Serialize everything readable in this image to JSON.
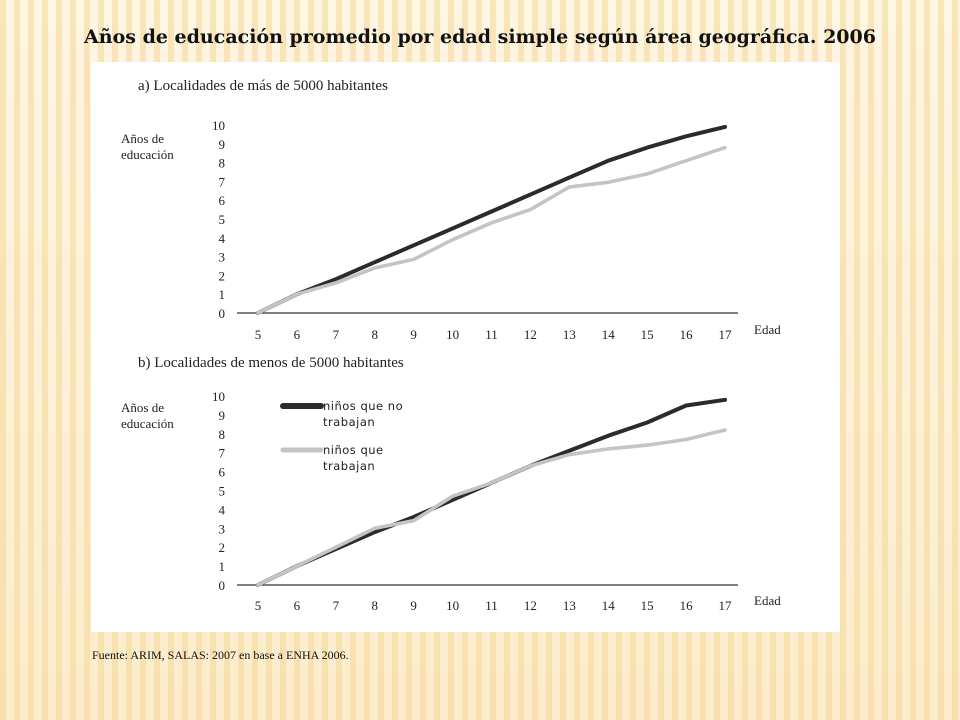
{
  "slide": {
    "title": "Años de educación promedio por edad simple según área geográfica. 2006",
    "source": "Fuente: ARIM, SALAS: 2007 en base a ENHA 2006."
  },
  "chart_data": [
    {
      "type": "line",
      "panel_title": "a) Localidades de más de 5000 habitantes",
      "ylabel": [
        "Años de",
        "educación"
      ],
      "xlabel": "Edad",
      "x": [
        5,
        6,
        7,
        8,
        9,
        10,
        11,
        12,
        13,
        14,
        15,
        16,
        17
      ],
      "xlim": [
        5,
        17
      ],
      "ylim": [
        0,
        10
      ],
      "yticks": [
        0,
        1,
        2,
        3,
        4,
        5,
        6,
        7,
        8,
        9,
        10
      ],
      "grid": false,
      "series": [
        {
          "values": [
            0,
            1.0,
            1.8,
            2.7,
            3.6,
            4.5,
            5.4,
            6.3,
            7.2,
            8.1,
            8.8,
            9.4,
            9.9
          ],
          "color": "#2b2b2b"
        },
        {
          "values": [
            0,
            1.0,
            1.6,
            2.4,
            2.85,
            3.9,
            4.8,
            5.5,
            6.7,
            6.95,
            7.4,
            8.1,
            8.8
          ],
          "color": "#c4c4c4"
        }
      ]
    },
    {
      "type": "line",
      "panel_title": "b) Localidades de menos de 5000 habitantes",
      "ylabel": [
        "Años de",
        "educación"
      ],
      "xlabel": "Edad",
      "x": [
        5,
        6,
        7,
        8,
        9,
        10,
        11,
        12,
        13,
        14,
        15,
        16,
        17
      ],
      "xlim": [
        5,
        17
      ],
      "ylim": [
        0,
        10
      ],
      "yticks": [
        0,
        1,
        2,
        3,
        4,
        5,
        6,
        7,
        8,
        9,
        10
      ],
      "grid": false,
      "legend": "top-left",
      "series": [
        {
          "name": [
            "niños que no",
            "trabajan"
          ],
          "values": [
            0,
            1.0,
            1.9,
            2.8,
            3.6,
            4.5,
            5.4,
            6.3,
            7.1,
            7.9,
            8.6,
            9.5,
            9.8
          ],
          "color": "#2b2b2b"
        },
        {
          "name": [
            "niños que",
            "trabajan"
          ],
          "values": [
            0,
            1.0,
            2.0,
            3.0,
            3.4,
            4.7,
            5.4,
            6.3,
            6.9,
            7.2,
            7.4,
            7.7,
            8.2
          ],
          "color": "#c4c4c4"
        }
      ]
    }
  ]
}
